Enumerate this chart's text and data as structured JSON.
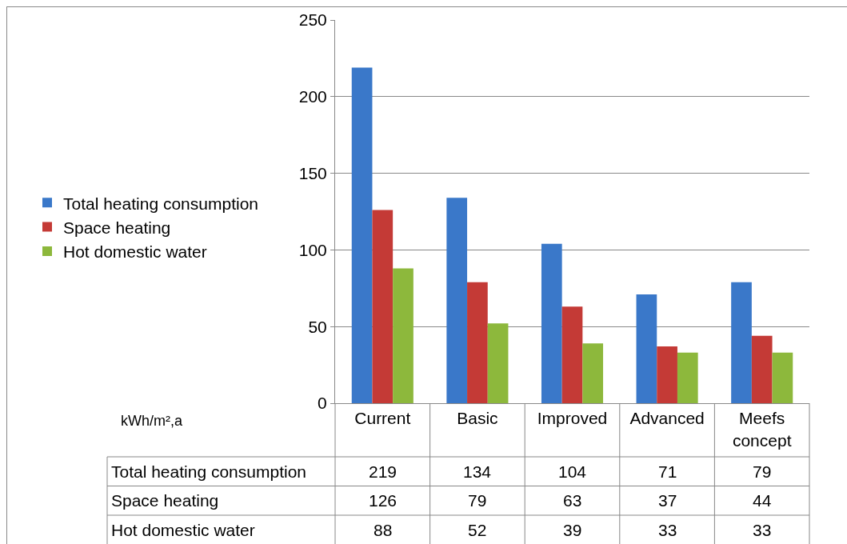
{
  "chart_data": {
    "type": "bar",
    "annotations": [
      "kWh/m²,a"
    ],
    "categories": [
      "Current",
      "Basic",
      "Improved",
      "Advanced",
      "Meefs concept"
    ],
    "series": [
      {
        "name": "Total heating consumption",
        "color": "#3a78c9",
        "values": [
          219,
          134,
          104,
          71,
          79
        ]
      },
      {
        "name": "Space heating",
        "color": "#c43a36",
        "values": [
          126,
          79,
          63,
          37,
          44
        ]
      },
      {
        "name": "Hot domestic water",
        "color": "#8db83c",
        "values": [
          88,
          52,
          39,
          33,
          33
        ]
      }
    ],
    "ylim": [
      0,
      250
    ],
    "yticks": [
      0,
      50,
      100,
      150,
      200,
      250
    ],
    "grid": "y",
    "legend": "left",
    "data_labels": true
  }
}
